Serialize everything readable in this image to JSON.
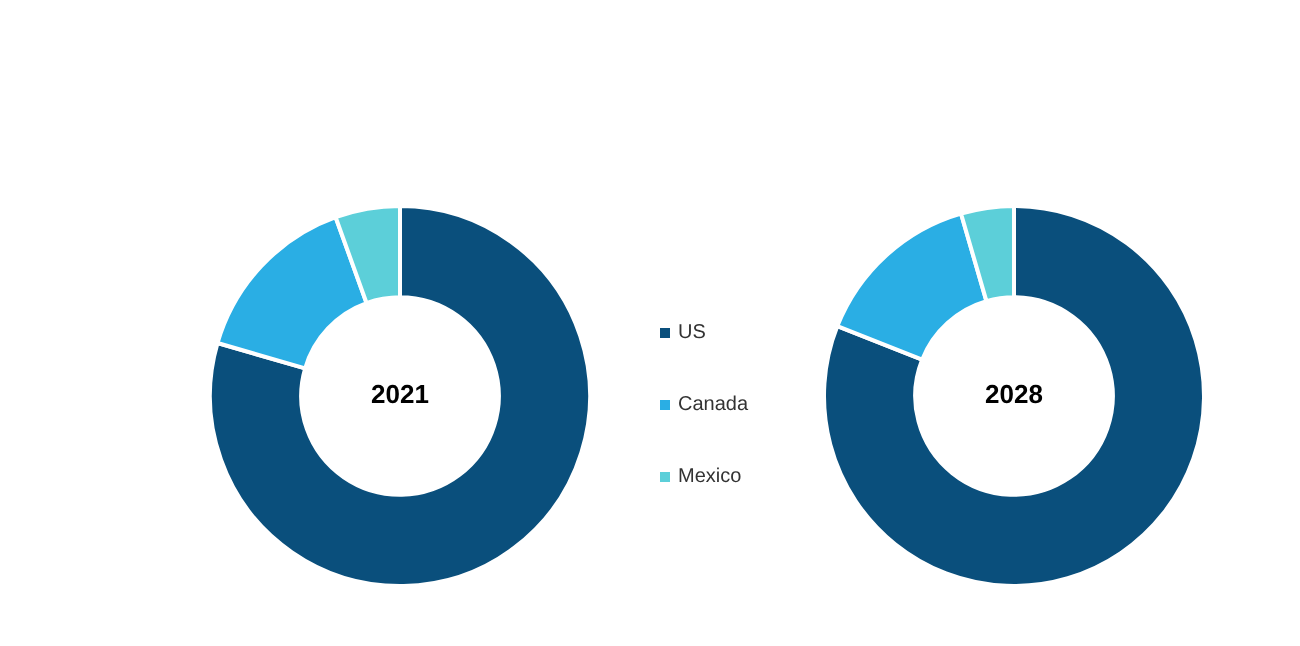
{
  "chart_data": [
    {
      "type": "donut",
      "title": "2021",
      "categories": [
        "US",
        "Canada",
        "Mexico"
      ],
      "values": [
        79.5,
        15,
        5.5
      ],
      "colors": [
        "#0a4f7c",
        "#2aaee4",
        "#5ccfd9"
      ],
      "legend": "right"
    },
    {
      "type": "donut",
      "title": "2028",
      "categories": [
        null,
        null,
        null
      ],
      "values": [
        81,
        14.5,
        4.5
      ],
      "colors": [
        "#0a4f7c",
        "#2aaee4",
        "#5ccfd9"
      ],
      "legend": false
    }
  ]
}
